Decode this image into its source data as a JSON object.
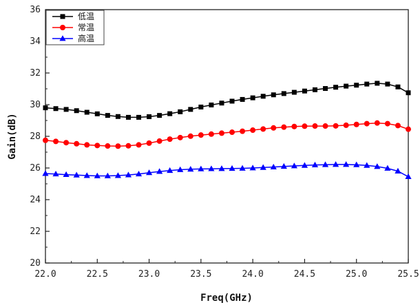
{
  "chart_data": {
    "type": "line",
    "xlabel": "Freq(GHz)",
    "ylabel": "Gain(dB)",
    "xlim": [
      22.0,
      25.5
    ],
    "ylim": [
      20,
      36
    ],
    "xticks": [
      22.0,
      22.5,
      23.0,
      23.5,
      24.0,
      24.5,
      25.0,
      25.5
    ],
    "xtick_labels": [
      "22.0",
      "22.5",
      "23.0",
      "23.5",
      "24.0",
      "24.5",
      "25.0",
      "25.5"
    ],
    "yticks": [
      20,
      22,
      24,
      26,
      28,
      30,
      32,
      34,
      36
    ],
    "ytick_labels": [
      "20",
      "22",
      "24",
      "26",
      "28",
      "30",
      "32",
      "34",
      "36"
    ],
    "grid": false,
    "legend_position": "top-left",
    "x": [
      22.0,
      22.1,
      22.2,
      22.3,
      22.4,
      22.5,
      22.6,
      22.7,
      22.8,
      22.9,
      23.0,
      23.1,
      23.2,
      23.3,
      23.4,
      23.5,
      23.6,
      23.7,
      23.8,
      23.9,
      24.0,
      24.1,
      24.2,
      24.3,
      24.4,
      24.5,
      24.6,
      24.7,
      24.8,
      24.9,
      25.0,
      25.1,
      25.2,
      25.3,
      25.4,
      25.5
    ],
    "series": [
      {
        "name": "低温",
        "color": "#000000",
        "marker": "square",
        "values": [
          29.8,
          29.75,
          29.7,
          29.62,
          29.52,
          29.42,
          29.32,
          29.25,
          29.2,
          29.2,
          29.24,
          29.32,
          29.43,
          29.55,
          29.7,
          29.85,
          29.98,
          30.1,
          30.22,
          30.33,
          30.43,
          30.53,
          30.62,
          30.7,
          30.78,
          30.86,
          30.94,
          31.02,
          31.1,
          31.17,
          31.23,
          31.3,
          31.35,
          31.3,
          31.12,
          30.75
        ]
      },
      {
        "name": "常温",
        "color": "#ff0000",
        "marker": "circle",
        "values": [
          27.75,
          27.68,
          27.6,
          27.53,
          27.46,
          27.42,
          27.39,
          27.38,
          27.4,
          27.46,
          27.57,
          27.7,
          27.82,
          27.92,
          28.01,
          28.08,
          28.14,
          28.2,
          28.26,
          28.32,
          28.39,
          28.46,
          28.53,
          28.58,
          28.62,
          28.64,
          28.65,
          28.65,
          28.66,
          28.7,
          28.75,
          28.8,
          28.84,
          28.8,
          28.68,
          28.45
        ]
      },
      {
        "name": "高温",
        "color": "#0000ff",
        "marker": "triangle",
        "values": [
          25.65,
          25.62,
          25.58,
          25.55,
          25.52,
          25.5,
          25.5,
          25.52,
          25.56,
          25.62,
          25.7,
          25.78,
          25.84,
          25.89,
          25.92,
          25.94,
          25.95,
          25.96,
          25.97,
          25.98,
          26.0,
          26.03,
          26.06,
          26.1,
          26.13,
          26.16,
          26.19,
          26.21,
          26.22,
          26.22,
          26.2,
          26.16,
          26.09,
          25.98,
          25.8,
          25.45
        ]
      }
    ]
  }
}
